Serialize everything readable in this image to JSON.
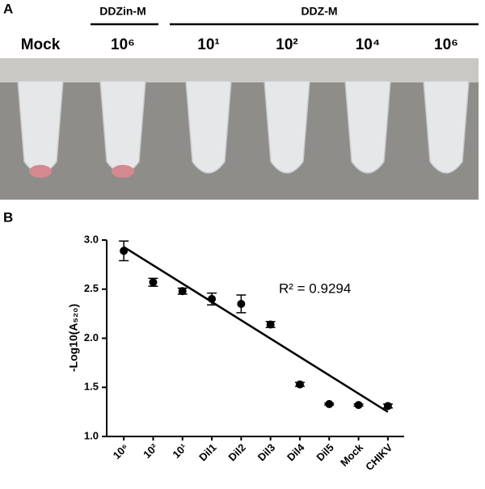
{
  "panel_a": {
    "label": "A",
    "groups": [
      {
        "label": "DDZin-M"
      },
      {
        "label": "DDZ-M"
      }
    ],
    "tubes": [
      "Mock",
      "10⁶",
      "10¹",
      "10²",
      "10⁴",
      "10⁶"
    ]
  },
  "chart_data": {
    "type": "scatter",
    "label": "B",
    "y_label": "-Log10(A₅₂₀)",
    "annotation": "R² = 0.9294",
    "categories": [
      "10⁶",
      "10²",
      "10¹",
      "Dil1",
      "Dil2",
      "Dil3",
      "Dil4",
      "Dil5",
      "Mock",
      "CHIKV"
    ],
    "values": [
      2.89,
      2.57,
      2.48,
      2.4,
      2.35,
      2.14,
      1.53,
      1.33,
      1.32,
      1.31
    ],
    "errors": [
      0.1,
      0.04,
      0.03,
      0.06,
      0.09,
      0.03,
      0.02,
      0.01,
      0.01,
      0.02
    ],
    "trend_ends": [
      2.93,
      1.25
    ],
    "color": "#000000",
    "ylim": [
      1,
      3
    ],
    "yticks": [
      {
        "value": 1,
        "label": "1.0"
      },
      {
        "value": 1.5,
        "label": "1.5"
      },
      {
        "value": 2,
        "label": "2.0"
      },
      {
        "value": 2.5,
        "label": "2.5"
      },
      {
        "value": 3,
        "label": "3.0"
      }
    ]
  }
}
